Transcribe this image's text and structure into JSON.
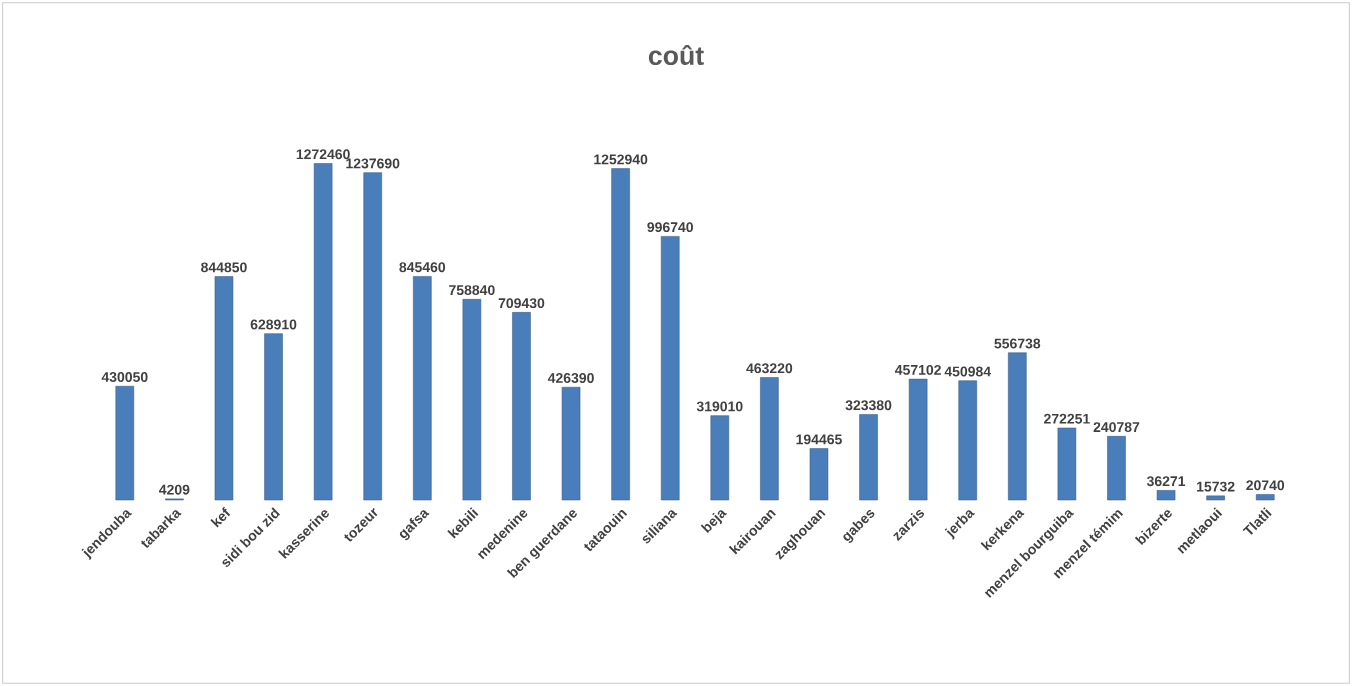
{
  "chart_data": {
    "type": "bar",
    "title": "coût",
    "categories": [
      "jendouba",
      "tabarka",
      "kef",
      "sidi bou zid",
      "kasserine",
      "tozeur",
      "gafsa",
      "kebili",
      "medenine",
      "ben guerdane",
      "tataouin",
      "siliana",
      "beja",
      "kairouan",
      "zaghouan",
      "gabes",
      "zarzis",
      "jerba",
      "kerkena",
      "menzel bourguiba",
      "menzel témim",
      "bizerte",
      "metlaoui",
      "Tlatli"
    ],
    "values": [
      430050,
      4209,
      844850,
      628910,
      1272460,
      1237690,
      845460,
      758840,
      709430,
      426390,
      1252940,
      996740,
      319010,
      463220,
      194465,
      323380,
      457102,
      450984,
      556738,
      272251,
      240787,
      36271,
      15732,
      20740
    ],
    "color": "#4a7ebb",
    "data_labels": true
  }
}
